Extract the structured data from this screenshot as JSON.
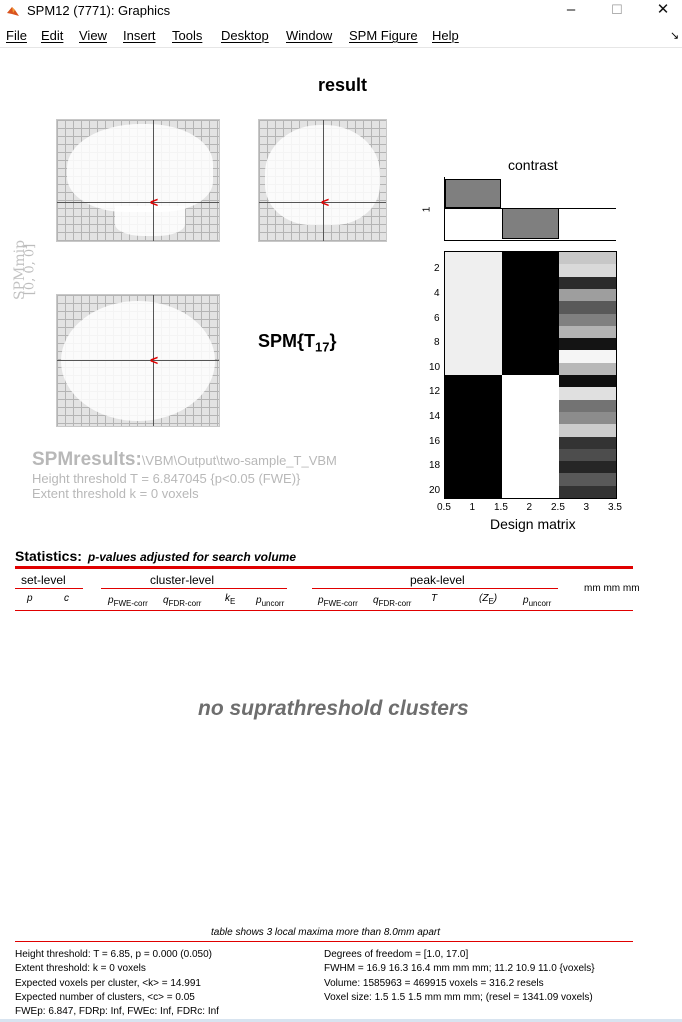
{
  "window": {
    "title": "SPM12 (7771): Graphics",
    "controls": {
      "minimize": "–",
      "maximize": "☐",
      "close": "✕"
    }
  },
  "menu": [
    "File",
    "Edit",
    "View",
    "Insert",
    "Tools",
    "Desktop",
    "Window",
    "SPM Figure",
    "Help"
  ],
  "figure": {
    "title": "result",
    "mip_label": "SPMmip",
    "mip_coords": "[0, 0, 0]",
    "stat_label": "SPM{T",
    "stat_df": "17",
    "stat_close": "}",
    "spmresults_label": "SPMresults:",
    "spmresults_path": "\\VBM\\Output\\two-sample_T_VBM",
    "height_threshold_line": "Height threshold T = 6.847045  {p<0.05 (FWE)}",
    "extent_threshold_line": "Extent threshold k = 0 voxels"
  },
  "design_matrix": {
    "contrast_label": "contrast",
    "contrast_ytick": "1",
    "contrast_values": [
      1,
      -1,
      0
    ],
    "yticks": [
      "2",
      "4",
      "6",
      "8",
      "10",
      "12",
      "14",
      "16",
      "18",
      "20"
    ],
    "xticks": [
      "0.5",
      "1",
      "1.5",
      "2",
      "2.5",
      "3",
      "3.5"
    ],
    "xlabel": "Design matrix",
    "group1_rows": 10,
    "group2_rows": 10,
    "covariate_grey_levels": [
      0.78,
      0.85,
      0.17,
      0.62,
      0.35,
      0.5,
      0.7,
      0.08,
      0.96,
      0.72,
      0.06,
      0.88,
      0.45,
      0.55,
      0.8,
      0.2,
      0.3,
      0.15,
      0.35,
      0.2
    ]
  },
  "statistics": {
    "heading": "Statistics:",
    "subheading": "p-values adjusted for search volume",
    "groups": {
      "set_level": "set-level",
      "cluster_level": "cluster-level",
      "peak_level": "peak-level",
      "mm": "mm mm mm"
    },
    "columns": {
      "set_p": "p",
      "set_c": "c",
      "c_pfwe": "p",
      "c_pfwe_sub": "FWE-corr",
      "c_qfdr": "q",
      "c_qfdr_sub": "FDR-corr",
      "c_ke": "k",
      "c_ke_sub": "E",
      "c_punc": "p",
      "c_punc_sub": "uncorr",
      "p_pfwe": "p",
      "p_pfwe_sub": "FWE-corr",
      "p_qfdr": "q",
      "p_qfdr_sub": "FDR-corr",
      "p_t": "T",
      "p_ze": "(Z",
      "p_ze_sub": "E",
      "p_ze_close": ")",
      "p_punc": "p",
      "p_punc_sub": "uncorr"
    },
    "no_clusters": "no suprathreshold clusters",
    "footnote": "table shows 3 local maxima more than 8.0mm apart",
    "footer_left": [
      "Height threshold: T = 6.85, p = 0.000 (0.050)",
      "Extent threshold: k = 0 voxels",
      "Expected voxels per cluster, <k> = 14.991",
      "Expected number of clusters, <c> = 0.05",
      "FWEp: 6.847, FDRp: Inf, FWEc: Inf, FDRc: Inf"
    ],
    "footer_right": [
      "Degrees of freedom = [1.0, 17.0]",
      "FWHM = 16.9 16.3 16.4 mm mm mm; 11.2 10.9 11.0 {voxels}",
      "Volume: 1585963 = 469915 voxels = 316.2 resels",
      "Voxel size: 1.5 1.5 1.5 mm mm mm; (resel = 1341.09 voxels)"
    ]
  },
  "colors": {
    "accent_red": "#e00000",
    "mip_grey": "#e3e3e3",
    "cursor_red": "#e00000"
  }
}
